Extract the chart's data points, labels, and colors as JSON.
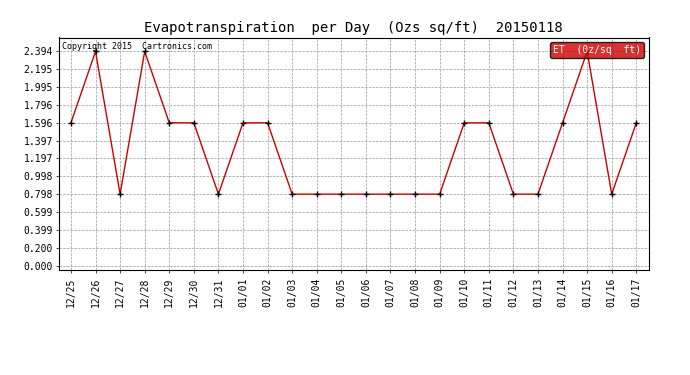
{
  "title": "Evapotranspiration  per Day  (Ozs sq/ft)  20150118",
  "copyright": "Copyright 2015  Cartronics.com",
  "legend_label": "ET  (0z/sq  ft)",
  "x_labels": [
    "12/25",
    "12/26",
    "12/27",
    "12/28",
    "12/29",
    "12/30",
    "12/31",
    "01/01",
    "01/02",
    "01/03",
    "01/04",
    "01/05",
    "01/06",
    "01/07",
    "01/08",
    "01/09",
    "01/10",
    "01/11",
    "01/12",
    "01/13",
    "01/14",
    "01/15",
    "01/16",
    "01/17"
  ],
  "y_values": [
    1.596,
    2.394,
    0.798,
    2.394,
    1.596,
    1.596,
    0.798,
    1.596,
    1.596,
    0.798,
    0.798,
    0.798,
    0.798,
    0.798,
    0.798,
    0.798,
    1.596,
    1.596,
    0.798,
    0.798,
    1.596,
    2.394,
    0.798,
    1.596
  ],
  "yticks": [
    0.0,
    0.2,
    0.399,
    0.599,
    0.798,
    0.998,
    1.197,
    1.397,
    1.596,
    1.796,
    1.995,
    2.195,
    2.394
  ],
  "ytick_labels": [
    "0.000",
    "0.200",
    "0.399",
    "0.599",
    "0.798",
    "0.998",
    "1.197",
    "1.397",
    "1.596",
    "1.796",
    "1.995",
    "2.195",
    "2.394"
  ],
  "line_color": "#cc0000",
  "marker_color": "#000000",
  "background_color": "#ffffff",
  "grid_color": "#999999",
  "legend_bg": "#cc0000",
  "legend_text_color": "#ffffff",
  "ylim_min": -0.05,
  "ylim_max": 2.55,
  "title_fontsize": 10,
  "copyright_fontsize": 6,
  "tick_fontsize": 7,
  "legend_fontsize": 7
}
